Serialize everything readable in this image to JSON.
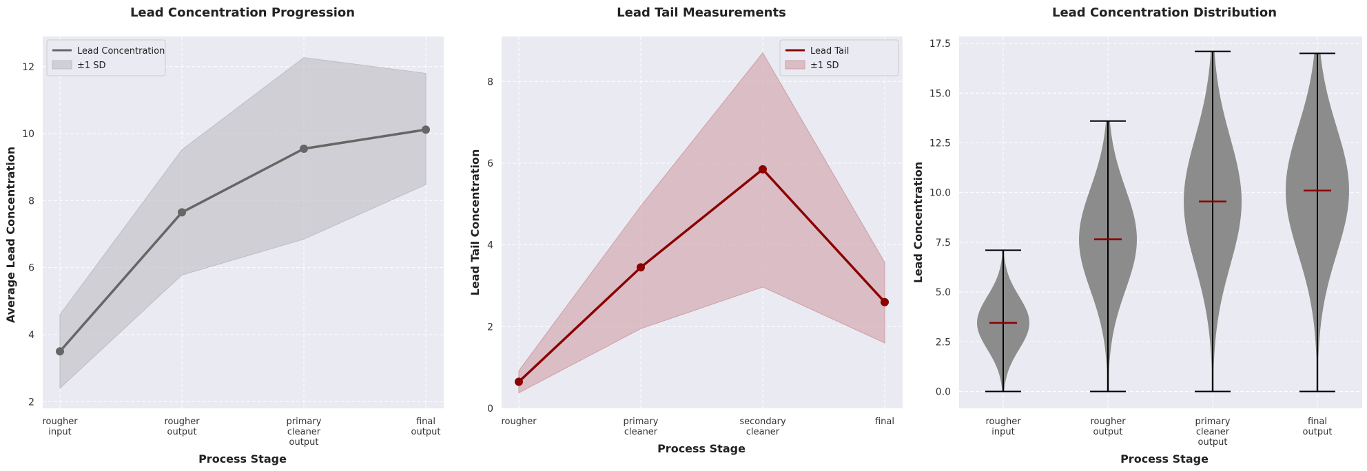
{
  "chart_data": [
    {
      "type": "line",
      "title": "Lead Concentration Progression",
      "xlabel": "Process Stage",
      "ylabel": "Average Lead Concentration",
      "categories": [
        [
          "rougher",
          "input"
        ],
        [
          "rougher",
          "output"
        ],
        [
          "primary",
          "cleaner",
          "output"
        ],
        [
          "final",
          "output"
        ]
      ],
      "series": [
        {
          "name": "Lead Concentration",
          "values": [
            3.5,
            7.65,
            9.55,
            10.12
          ],
          "color": "#666666"
        }
      ],
      "band": {
        "name": "±1 SD",
        "lower": [
          2.4,
          5.78,
          6.85,
          8.48
        ],
        "upper": [
          4.6,
          9.52,
          12.27,
          11.8
        ],
        "color": "#bdbdc2"
      },
      "ylim": [
        1.8,
        12.9
      ],
      "yticks": [
        2,
        4,
        6,
        8,
        10,
        12
      ],
      "yticklabels": [
        "2",
        "4",
        "6",
        "8",
        "10",
        "12"
      ],
      "grid": true,
      "legend": "top-left"
    },
    {
      "type": "line",
      "title": "Lead Tail Measurements",
      "xlabel": "Process Stage",
      "ylabel": "Lead Tail Concentration",
      "categories": [
        [
          "rougher"
        ],
        [
          "primary",
          "cleaner"
        ],
        [
          "secondary",
          "cleaner"
        ],
        [
          "final"
        ]
      ],
      "series": [
        {
          "name": "Lead Tail",
          "values": [
            0.65,
            3.45,
            5.85,
            2.6
          ],
          "color": "#8b0000"
        }
      ],
      "band": {
        "name": "±1 SD",
        "lower": [
          0.38,
          1.95,
          2.97,
          1.6
        ],
        "upper": [
          0.92,
          4.95,
          8.7,
          3.57
        ],
        "color": "#cf9ea6"
      },
      "ylim": [
        0,
        9.1
      ],
      "yticks": [
        0,
        2,
        4,
        6,
        8
      ],
      "yticklabels": [
        "0",
        "2",
        "4",
        "6",
        "8"
      ],
      "grid": true,
      "legend": "top-right"
    },
    {
      "type": "violin",
      "title": "Lead Concentration Distribution",
      "xlabel": "Process Stage",
      "ylabel": "Lead Concentration",
      "categories": [
        [
          "rougher",
          "input"
        ],
        [
          "rougher",
          "output"
        ],
        [
          "primary",
          "cleaner",
          "output"
        ],
        [
          "final",
          "output"
        ]
      ],
      "min": [
        0,
        0,
        0,
        0
      ],
      "max": [
        7.1,
        13.6,
        17.1,
        17.0
      ],
      "mean": [
        3.45,
        7.65,
        9.55,
        10.1
      ],
      "ylim": [
        -0.85,
        17.85
      ],
      "yticks": [
        0,
        2.5,
        5,
        7.5,
        10,
        12.5,
        15,
        17.5
      ],
      "yticklabels": [
        "0.0",
        "2.5",
        "5.0",
        "7.5",
        "10.0",
        "12.5",
        "15.0",
        "17.5"
      ],
      "grid": true,
      "body_color": "#8c8c8c",
      "mean_color": "#8b0000"
    }
  ]
}
